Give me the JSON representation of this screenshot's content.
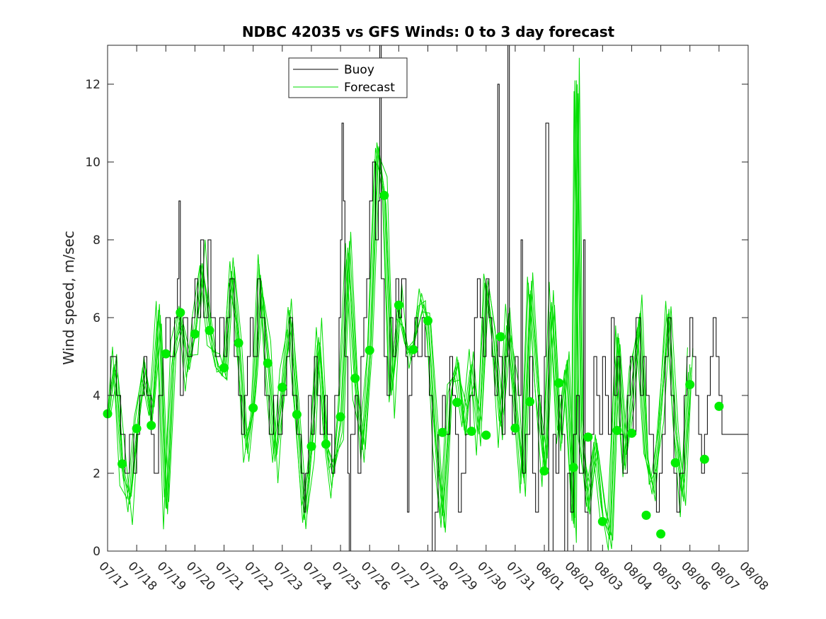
{
  "chart_data": {
    "type": "line",
    "title": "NDBC 42035 vs GFS Winds: 0 to 3 day forecast",
    "xlabel": "",
    "ylabel": "Wind speed, m/sec",
    "x_range": [
      "07/17",
      "08/08"
    ],
    "xlim": [
      0,
      22
    ],
    "ylim": [
      0,
      13
    ],
    "x_ticks": [
      "07/17",
      "07/18",
      "07/19",
      "07/20",
      "07/21",
      "07/22",
      "07/23",
      "07/24",
      "07/25",
      "07/26",
      "07/27",
      "07/28",
      "07/29",
      "07/30",
      "07/31",
      "08/01",
      "08/02",
      "08/03",
      "08/04",
      "08/05",
      "08/06",
      "08/07",
      "08/08"
    ],
    "y_ticks": [
      0,
      2,
      4,
      6,
      8,
      10,
      12
    ],
    "legend": {
      "location": "top-center",
      "entries": [
        "Buoy",
        "Forecast"
      ]
    },
    "colors": {
      "buoy": "#000000",
      "forecast": "#00dd00",
      "marker": "#00ee00",
      "axes": "#262626"
    },
    "series": [
      {
        "name": "Buoy",
        "color": "#000000",
        "style": "step",
        "points": [
          [
            0,
            4
          ],
          [
            0.1,
            5
          ],
          [
            0.3,
            4
          ],
          [
            0.45,
            3
          ],
          [
            0.6,
            2
          ],
          [
            0.75,
            3
          ],
          [
            0.9,
            2
          ],
          [
            1.0,
            3
          ],
          [
            1.1,
            4
          ],
          [
            1.25,
            5
          ],
          [
            1.35,
            4
          ],
          [
            1.5,
            3
          ],
          [
            1.6,
            2
          ],
          [
            1.75,
            4
          ],
          [
            1.9,
            5
          ],
          [
            2.0,
            6
          ],
          [
            2.15,
            5
          ],
          [
            2.3,
            6
          ],
          [
            2.4,
            7
          ],
          [
            2.45,
            9
          ],
          [
            2.5,
            4
          ],
          [
            2.6,
            6
          ],
          [
            2.75,
            5
          ],
          [
            2.9,
            6
          ],
          [
            3.0,
            7
          ],
          [
            3.1,
            6
          ],
          [
            3.2,
            8
          ],
          [
            3.3,
            6
          ],
          [
            3.45,
            8
          ],
          [
            3.55,
            6
          ],
          [
            3.7,
            5
          ],
          [
            3.85,
            6
          ],
          [
            4.0,
            5
          ],
          [
            4.1,
            6
          ],
          [
            4.2,
            7
          ],
          [
            4.35,
            5
          ],
          [
            4.5,
            4
          ],
          [
            4.6,
            3
          ],
          [
            4.7,
            4
          ],
          [
            4.8,
            5
          ],
          [
            4.9,
            6
          ],
          [
            5.0,
            5
          ],
          [
            5.15,
            7
          ],
          [
            5.25,
            6
          ],
          [
            5.4,
            4
          ],
          [
            5.55,
            3
          ],
          [
            5.7,
            4
          ],
          [
            5.85,
            3
          ],
          [
            6.0,
            4
          ],
          [
            6.15,
            5
          ],
          [
            6.25,
            6
          ],
          [
            6.35,
            4
          ],
          [
            6.5,
            3
          ],
          [
            6.65,
            2
          ],
          [
            6.75,
            1
          ],
          [
            6.8,
            2
          ],
          [
            6.9,
            4
          ],
          [
            7.0,
            3
          ],
          [
            7.1,
            5
          ],
          [
            7.2,
            4
          ],
          [
            7.3,
            3
          ],
          [
            7.45,
            4
          ],
          [
            7.55,
            3
          ],
          [
            7.7,
            2
          ],
          [
            7.8,
            4
          ],
          [
            7.95,
            6
          ],
          [
            8.0,
            8
          ],
          [
            8.05,
            11
          ],
          [
            8.1,
            9
          ],
          [
            8.15,
            5
          ],
          [
            8.25,
            2
          ],
          [
            8.3,
            0
          ],
          [
            8.35,
            3
          ],
          [
            8.5,
            4
          ],
          [
            8.6,
            2
          ],
          [
            8.7,
            5
          ],
          [
            8.8,
            6
          ],
          [
            8.9,
            7
          ],
          [
            9.0,
            9
          ],
          [
            9.1,
            10
          ],
          [
            9.2,
            8
          ],
          [
            9.3,
            9
          ],
          [
            9.35,
            13
          ],
          [
            9.4,
            7
          ],
          [
            9.5,
            5
          ],
          [
            9.6,
            4
          ],
          [
            9.7,
            6
          ],
          [
            9.8,
            5
          ],
          [
            9.9,
            7
          ],
          [
            10.0,
            6
          ],
          [
            10.1,
            7
          ],
          [
            10.25,
            5
          ],
          [
            10.3,
            1
          ],
          [
            10.35,
            4
          ],
          [
            10.45,
            5
          ],
          [
            10.55,
            6
          ],
          [
            10.65,
            5
          ],
          [
            10.8,
            6
          ],
          [
            10.9,
            5
          ],
          [
            11.05,
            4
          ],
          [
            11.15,
            0
          ],
          [
            11.25,
            1
          ],
          [
            11.35,
            3
          ],
          [
            11.5,
            4
          ],
          [
            11.6,
            3
          ],
          [
            11.75,
            5
          ],
          [
            11.85,
            4
          ],
          [
            11.95,
            3
          ],
          [
            12.05,
            1
          ],
          [
            12.15,
            2
          ],
          [
            12.3,
            3
          ],
          [
            12.45,
            4
          ],
          [
            12.6,
            6
          ],
          [
            12.7,
            7
          ],
          [
            12.8,
            6
          ],
          [
            12.9,
            5
          ],
          [
            13.0,
            7
          ],
          [
            13.1,
            6
          ],
          [
            13.2,
            5
          ],
          [
            13.3,
            4
          ],
          [
            13.4,
            12
          ],
          [
            13.45,
            5
          ],
          [
            13.55,
            3
          ],
          [
            13.65,
            5
          ],
          [
            13.75,
            13
          ],
          [
            13.8,
            4
          ],
          [
            13.9,
            3
          ],
          [
            14.0,
            5
          ],
          [
            14.1,
            4
          ],
          [
            14.2,
            8
          ],
          [
            14.25,
            2
          ],
          [
            14.35,
            3
          ],
          [
            14.5,
            5
          ],
          [
            14.6,
            2
          ],
          [
            14.7,
            1
          ],
          [
            14.8,
            4
          ],
          [
            14.9,
            3
          ],
          [
            15.0,
            5
          ],
          [
            15.05,
            11
          ],
          [
            15.15,
            0
          ],
          [
            15.3,
            3
          ],
          [
            15.4,
            2
          ],
          [
            15.5,
            4
          ],
          [
            15.6,
            3
          ],
          [
            15.7,
            0
          ],
          [
            15.8,
            2
          ],
          [
            15.9,
            1
          ],
          [
            16.0,
            3
          ],
          [
            16.1,
            4
          ],
          [
            16.2,
            2
          ],
          [
            16.35,
            8
          ],
          [
            16.4,
            1
          ],
          [
            16.5,
            0
          ],
          [
            16.6,
            3
          ],
          [
            16.7,
            5
          ],
          [
            16.8,
            4
          ],
          [
            16.9,
            3
          ],
          [
            17.0,
            5
          ],
          [
            17.1,
            4
          ],
          [
            17.2,
            3
          ],
          [
            17.3,
            6
          ],
          [
            17.4,
            4
          ],
          [
            17.5,
            5
          ],
          [
            17.6,
            3
          ],
          [
            17.7,
            2
          ],
          [
            17.85,
            4
          ],
          [
            17.95,
            5
          ],
          [
            18.05,
            3
          ],
          [
            18.15,
            6
          ],
          [
            18.3,
            4
          ],
          [
            18.4,
            5
          ],
          [
            18.5,
            4
          ],
          [
            18.6,
            3
          ],
          [
            18.75,
            2
          ],
          [
            18.85,
            1
          ],
          [
            18.95,
            2
          ],
          [
            19.05,
            3
          ],
          [
            19.15,
            5
          ],
          [
            19.25,
            6
          ],
          [
            19.35,
            4
          ],
          [
            19.45,
            2
          ],
          [
            19.55,
            1
          ],
          [
            19.65,
            2
          ],
          [
            19.8,
            4
          ],
          [
            19.9,
            5
          ],
          [
            20.0,
            6
          ],
          [
            20.1,
            5
          ],
          [
            20.2,
            4
          ],
          [
            20.3,
            3
          ],
          [
            20.4,
            2
          ],
          [
            20.5,
            3
          ],
          [
            20.6,
            4
          ],
          [
            20.7,
            5
          ],
          [
            20.8,
            6
          ],
          [
            20.9,
            5
          ],
          [
            21.0,
            4
          ],
          [
            21.1,
            3
          ]
        ]
      },
      {
        "name": "Forecast",
        "color": "#00dd00",
        "style": "multi-line",
        "points": [
          [
            0,
            3.5
          ],
          [
            0.25,
            4.8
          ],
          [
            0.5,
            2.2
          ],
          [
            0.75,
            1.2
          ],
          [
            1.0,
            3.1
          ],
          [
            1.25,
            5.0
          ],
          [
            1.5,
            3.2
          ],
          [
            1.75,
            6.2
          ],
          [
            2.0,
            1.1
          ],
          [
            2.25,
            5.0
          ],
          [
            2.5,
            6.1
          ],
          [
            2.75,
            4.6
          ],
          [
            3.0,
            5.6
          ],
          [
            3.25,
            7.4
          ],
          [
            3.5,
            5.7
          ],
          [
            3.75,
            4.6
          ],
          [
            4.0,
            4.7
          ],
          [
            4.25,
            7.2
          ],
          [
            4.5,
            5.3
          ],
          [
            4.75,
            2.6
          ],
          [
            5.0,
            3.7
          ],
          [
            5.25,
            7.1
          ],
          [
            5.5,
            4.8
          ],
          [
            5.75,
            2.3
          ],
          [
            6.0,
            4.2
          ],
          [
            6.25,
            6.2
          ],
          [
            6.5,
            3.5
          ],
          [
            6.75,
            0.8
          ],
          [
            7.0,
            2.7
          ],
          [
            7.25,
            5.5
          ],
          [
            7.5,
            2.7
          ],
          [
            7.75,
            1.9
          ],
          [
            8.0,
            3.4
          ],
          [
            8.25,
            7.8
          ],
          [
            8.5,
            4.4
          ],
          [
            8.75,
            2.6
          ],
          [
            9.0,
            5.1
          ],
          [
            9.25,
            10.5
          ],
          [
            9.5,
            9.1
          ],
          [
            9.75,
            4.0
          ],
          [
            10.0,
            6.3
          ],
          [
            10.25,
            5.2
          ],
          [
            10.5,
            5.2
          ],
          [
            10.75,
            6.5
          ],
          [
            11.0,
            5.9
          ],
          [
            11.25,
            3.0
          ],
          [
            11.5,
            0.9
          ],
          [
            11.75,
            3.8
          ],
          [
            12.0,
            5.0
          ],
          [
            12.25,
            3.1
          ],
          [
            12.5,
            4.8
          ],
          [
            12.75,
            3.0
          ],
          [
            13.0,
            6.9
          ],
          [
            13.25,
            5.5
          ],
          [
            13.5,
            3.2
          ],
          [
            13.75,
            6.0
          ],
          [
            14.0,
            3.8
          ],
          [
            14.25,
            2.0
          ],
          [
            14.5,
            6.6
          ],
          [
            14.75,
            4.3
          ],
          [
            15.0,
            2.1
          ],
          [
            15.25,
            6.4
          ],
          [
            15.5,
            2.9
          ],
          [
            15.75,
            4.8
          ],
          [
            16.0,
            0.7
          ],
          [
            16.1,
            12.1
          ],
          [
            16.25,
            3.1
          ],
          [
            16.5,
            1.0
          ],
          [
            16.75,
            3.0
          ],
          [
            17.0,
            0.9
          ],
          [
            17.25,
            0.3
          ],
          [
            17.5,
            5.5
          ],
          [
            17.75,
            2.2
          ],
          [
            18.0,
            4.3
          ],
          [
            18.25,
            6.0
          ],
          [
            18.5,
            2.3
          ],
          [
            18.75,
            1.6
          ],
          [
            19.0,
            3.7
          ],
          [
            19.25,
            6.1
          ],
          [
            19.5,
            3.1
          ],
          [
            19.75,
            1.4
          ],
          [
            20.0,
            4.8
          ]
        ]
      }
    ],
    "markers": {
      "color": "#00ee00",
      "points": [
        [
          0,
          3.53
        ],
        [
          0.5,
          2.24
        ],
        [
          1.0,
          3.15
        ],
        [
          1.5,
          3.23
        ],
        [
          2.0,
          5.07
        ],
        [
          2.5,
          6.13
        ],
        [
          3.0,
          5.58
        ],
        [
          3.5,
          5.67
        ],
        [
          4.0,
          4.71
        ],
        [
          4.5,
          5.35
        ],
        [
          5.0,
          3.68
        ],
        [
          5.5,
          4.83
        ],
        [
          6.0,
          4.21
        ],
        [
          6.5,
          3.51
        ],
        [
          7.0,
          2.69
        ],
        [
          7.5,
          2.75
        ],
        [
          8.0,
          3.45
        ],
        [
          8.5,
          4.44
        ],
        [
          9.0,
          5.16
        ],
        [
          9.5,
          9.14
        ],
        [
          10.0,
          6.32
        ],
        [
          10.5,
          5.18
        ],
        [
          11.0,
          5.92
        ],
        [
          11.5,
          3.05
        ],
        [
          12.0,
          3.82
        ],
        [
          12.5,
          3.08
        ],
        [
          13.0,
          2.98
        ],
        [
          13.5,
          5.51
        ],
        [
          14.0,
          3.16
        ],
        [
          14.5,
          3.84
        ],
        [
          15.0,
          2.06
        ],
        [
          15.5,
          4.32
        ],
        [
          16.0,
          2.15
        ],
        [
          16.5,
          2.93
        ],
        [
          17.0,
          0.76
        ],
        [
          17.5,
          3.1
        ],
        [
          18.0,
          3.03
        ],
        [
          18.5,
          0.92
        ],
        [
          19.0,
          0.44
        ],
        [
          19.5,
          2.27
        ],
        [
          20.0,
          4.28
        ],
        [
          20.5,
          2.36
        ],
        [
          21.0,
          3.72
        ]
      ]
    }
  }
}
